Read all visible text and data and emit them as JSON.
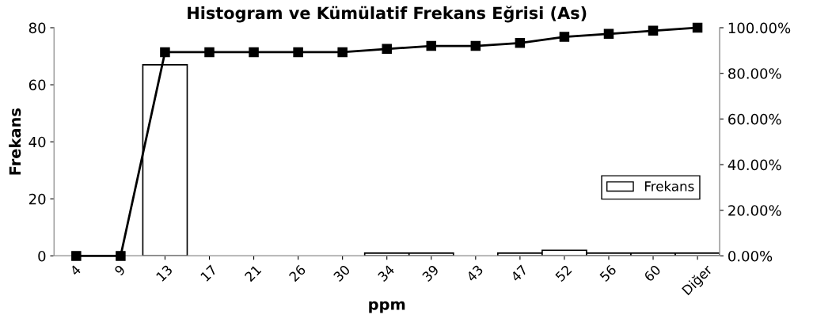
{
  "chart_data": {
    "type": "bar",
    "title": "Histogram ve Kümülatif Frekans Eğrisi (As)",
    "xlabel": "ppm",
    "ylabel": "Frekans",
    "categories": [
      "4",
      "9",
      "13",
      "17",
      "21",
      "26",
      "30",
      "34",
      "39",
      "43",
      "47",
      "52",
      "56",
      "60",
      "Diğer"
    ],
    "series": [
      {
        "name": "Frekans",
        "color": "#ffffff",
        "values": [
          0,
          0,
          67,
          0,
          0,
          0,
          0,
          1,
          1,
          0,
          1,
          2,
          1,
          1,
          1
        ]
      },
      {
        "type": "line",
        "axis": "y2",
        "color": "#000000",
        "marker": "square",
        "line_style": "solid",
        "values": [
          0,
          0,
          89.3,
          89.3,
          89.3,
          89.3,
          89.3,
          90.7,
          92,
          92,
          93.3,
          96,
          97.3,
          98.7,
          100
        ]
      }
    ],
    "ylim": [
      0,
      80
    ],
    "yticks": [
      0,
      20,
      40,
      60,
      80
    ],
    "y2lim": [
      0,
      100
    ],
    "y2ticks": [
      {
        "value": 0,
        "label": "0.00%"
      },
      {
        "value": 20,
        "label": "20.00%"
      },
      {
        "value": 40,
        "label": "40.00%"
      },
      {
        "value": 60,
        "label": "60.00%"
      },
      {
        "value": 80,
        "label": "80.00%"
      },
      {
        "value": 100,
        "label": "100.00%"
      }
    ],
    "legend": "right",
    "grid": false
  }
}
